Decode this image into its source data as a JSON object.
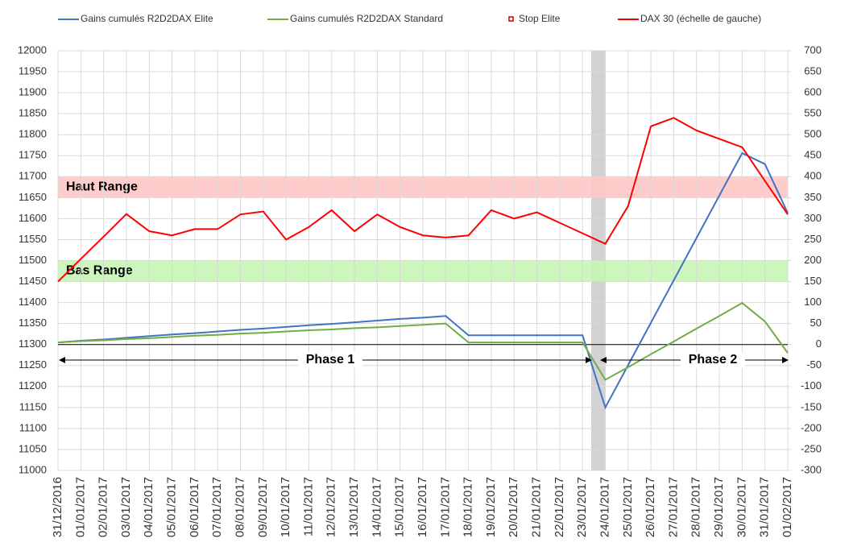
{
  "chart_data": {
    "type": "line",
    "categories": [
      "31/12/2016",
      "01/01/2017",
      "02/01/2017",
      "03/01/2017",
      "04/01/2017",
      "05/01/2017",
      "06/01/2017",
      "07/01/2017",
      "08/01/2017",
      "09/01/2017",
      "10/01/2017",
      "11/01/2017",
      "12/01/2017",
      "13/01/2017",
      "14/01/2017",
      "15/01/2017",
      "16/01/2017",
      "17/01/2017",
      "18/01/2017",
      "19/01/2017",
      "20/01/2017",
      "21/01/2017",
      "22/01/2017",
      "23/01/2017",
      "24/01/2017",
      "25/01/2017",
      "26/01/2017",
      "27/01/2017",
      "28/01/2017",
      "29/01/2017",
      "30/01/2017",
      "31/01/2017",
      "01/02/2017"
    ],
    "series": [
      {
        "name": "Gains cumulés R2D2DAX Elite",
        "color": "#4472c4",
        "axis": "y2",
        "values": [
          5,
          9,
          12,
          16,
          20,
          24,
          27,
          31,
          35,
          38,
          42,
          46,
          49,
          53,
          57,
          61,
          64,
          68,
          22,
          22,
          22,
          22,
          22,
          22,
          -150,
          -49,
          52,
          153,
          254,
          355,
          456,
          430,
          313
        ]
      },
      {
        "name": "Gains cumulés R2D2DAX Standard",
        "color": "#70ad47",
        "axis": "y2",
        "values": [
          5,
          8,
          10,
          13,
          15,
          18,
          21,
          23,
          26,
          28,
          31,
          34,
          36,
          39,
          41,
          44,
          47,
          50,
          5,
          5,
          5,
          5,
          5,
          5,
          -84,
          -54,
          -23,
          7,
          38,
          68,
          99,
          55,
          -20
        ]
      },
      {
        "name": "Stop Elite",
        "color": "#c00000",
        "axis": "y2",
        "marker": "square",
        "values": [
          null,
          null,
          null,
          null,
          null,
          null,
          null,
          null,
          null,
          null,
          null,
          null,
          null,
          null,
          null,
          null,
          null,
          null,
          null,
          null,
          null,
          null,
          null,
          null,
          null,
          null,
          null,
          null,
          null,
          null,
          null,
          null,
          null
        ]
      },
      {
        "name": "DAX 30 (échelle de gauche)",
        "color": "#ff0000",
        "values": [
          11450,
          11504,
          11557,
          11611,
          11570,
          11560,
          11575,
          11575,
          11610,
          11617,
          11550,
          11580,
          11620,
          11570,
          11610,
          11580,
          11560,
          11555,
          11560,
          11620,
          11600,
          11615,
          11590,
          11565,
          11540,
          11630,
          11820,
          11840,
          11810,
          11790,
          11770,
          11690,
          11610
        ]
      }
    ],
    "ylim": [
      11000,
      12000
    ],
    "yticks": [
      11000,
      11050,
      11100,
      11150,
      11200,
      11250,
      11300,
      11350,
      11400,
      11450,
      11500,
      11550,
      11600,
      11650,
      11700,
      11750,
      11800,
      11850,
      11900,
      11950,
      12000
    ],
    "y2lim": [
      -300,
      700
    ],
    "y2ticks": [
      -300,
      -250,
      -200,
      -150,
      -100,
      -50,
      0,
      50,
      100,
      150,
      200,
      250,
      300,
      350,
      400,
      450,
      500,
      550,
      600,
      650,
      700
    ],
    "bands": [
      {
        "label": "Haut Range",
        "ymin": 11650,
        "ymax": 11700,
        "color": "#ffc7c7"
      },
      {
        "label": "Bas Range",
        "ymin": 11450,
        "ymax": 11500,
        "color": "#c6f5b5"
      }
    ],
    "phases": [
      "Phase 1",
      "Phase 2"
    ],
    "legend": "top"
  }
}
